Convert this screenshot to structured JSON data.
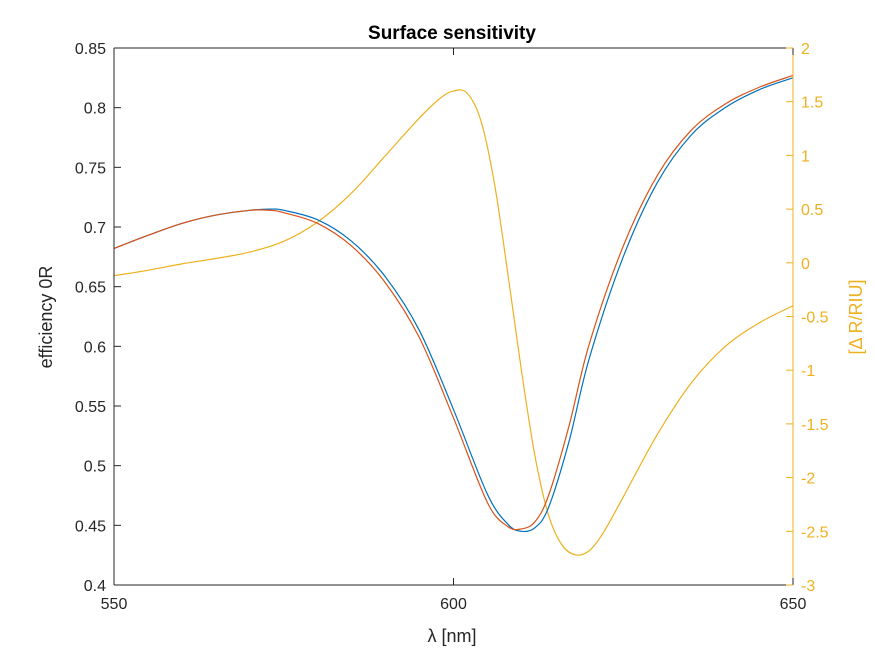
{
  "chart_data": {
    "type": "line",
    "title": "Surface sensitivity",
    "xlabel": "λ [nm]",
    "ylabel_left": "efficiency 0R",
    "ylabel_right": "[Δ R/RIU]",
    "xlim": [
      550,
      650
    ],
    "ylim_left": [
      0.4,
      0.85
    ],
    "ylim_right": [
      -3,
      2
    ],
    "xticks": [
      550,
      600,
      650
    ],
    "xtick_labels": [
      "550",
      "600",
      "650"
    ],
    "yticks_left": [
      0.4,
      0.45,
      0.5,
      0.55,
      0.6,
      0.65,
      0.7,
      0.75,
      0.8,
      0.85
    ],
    "ytick_labels_left": [
      "0.4",
      "0.45",
      "0.5",
      "0.55",
      "0.6",
      "0.65",
      "0.7",
      "0.75",
      "0.8",
      "0.85"
    ],
    "yticks_right": [
      -3,
      -2.5,
      -2,
      -1.5,
      -1,
      -0.5,
      0,
      0.5,
      1,
      1.5,
      2
    ],
    "ytick_labels_right": [
      "-3",
      "-2.5",
      "-2",
      "-1.5",
      "-1",
      "-0.5",
      "0",
      "0.5",
      "1",
      "1.5",
      "2"
    ],
    "grid": false,
    "legend": false,
    "colors": {
      "axes": "#262626",
      "right_axis": "#EDB120",
      "series_blue": "#0072BD",
      "series_red": "#D95319",
      "series_sensitivity": "#EDB120"
    },
    "series": [
      {
        "axis": "left",
        "color": "#0072BD",
        "x": [
          550,
          555,
          560,
          565,
          570,
          573,
          575,
          580,
          585,
          590,
          595,
          600,
          605,
          608,
          610,
          612,
          614,
          617,
          620,
          625,
          630,
          635,
          640,
          645,
          650
        ],
        "y": [
          0.682,
          0.693,
          0.703,
          0.71,
          0.714,
          0.715,
          0.714,
          0.706,
          0.688,
          0.658,
          0.613,
          0.547,
          0.476,
          0.451,
          0.445,
          0.448,
          0.465,
          0.52,
          0.59,
          0.675,
          0.737,
          0.777,
          0.8,
          0.815,
          0.825
        ]
      },
      {
        "axis": "left",
        "color": "#D95319",
        "x": [
          550,
          555,
          560,
          565,
          570,
          573,
          575,
          580,
          585,
          590,
          595,
          600,
          605,
          608,
          610,
          612,
          614,
          617,
          620,
          625,
          630,
          635,
          640,
          645,
          650
        ],
        "y": [
          0.682,
          0.693,
          0.703,
          0.71,
          0.714,
          0.714,
          0.712,
          0.703,
          0.684,
          0.653,
          0.607,
          0.54,
          0.469,
          0.449,
          0.447,
          0.453,
          0.475,
          0.533,
          0.602,
          0.684,
          0.743,
          0.781,
          0.803,
          0.817,
          0.827
        ]
      },
      {
        "axis": "right",
        "color": "#EDB120",
        "x": [
          550,
          555,
          560,
          565,
          570,
          575,
          580,
          585,
          590,
          595,
          598,
          600,
          602,
          604,
          606,
          608,
          610,
          612,
          614,
          616,
          618,
          620,
          622,
          625,
          630,
          635,
          640,
          645,
          650
        ],
        "y": [
          -0.12,
          -0.07,
          -0.01,
          0.04,
          0.1,
          0.2,
          0.38,
          0.65,
          1.0,
          1.35,
          1.53,
          1.6,
          1.58,
          1.33,
          0.75,
          -0.1,
          -1.0,
          -1.8,
          -2.35,
          -2.63,
          -2.72,
          -2.68,
          -2.52,
          -2.18,
          -1.6,
          -1.12,
          -0.78,
          -0.56,
          -0.4
        ]
      }
    ]
  }
}
